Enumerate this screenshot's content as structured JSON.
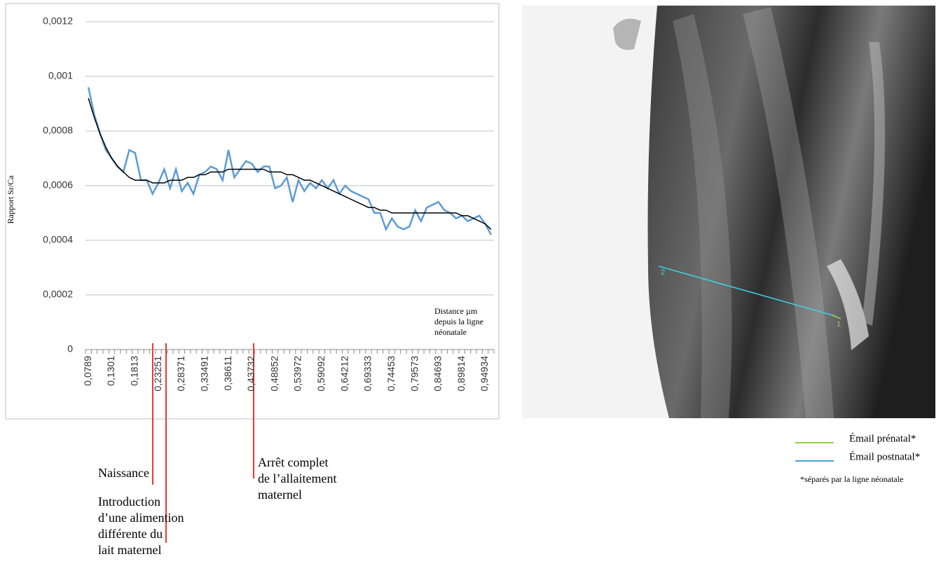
{
  "chart_data": {
    "type": "line",
    "y_label": "Rapport Sr/Ca",
    "x_label": "Distance µm depuis la ligne néonatale",
    "categories": [
      "0,0789",
      null,
      null,
      null,
      "0,1301",
      null,
      null,
      null,
      "0,1813",
      null,
      null,
      null,
      "0,23251",
      null,
      null,
      null,
      "0,28371",
      null,
      null,
      null,
      "0,33491",
      null,
      null,
      null,
      "0,38611",
      null,
      null,
      null,
      "0,43732",
      null,
      null,
      null,
      "0,48852",
      null,
      null,
      null,
      "0,53972",
      null,
      null,
      null,
      "0,59092",
      null,
      null,
      null,
      "0,64212",
      null,
      null,
      null,
      "0,69333",
      null,
      null,
      null,
      "0,74453",
      null,
      null,
      null,
      "0,79573",
      null,
      null,
      null,
      "0,84693",
      null,
      null,
      null,
      "0,89814",
      null,
      null,
      null,
      "0,94934",
      null
    ],
    "series": [
      {
        "color": "#5b9bd5",
        "values": [
          0.00096,
          0.00086,
          0.00079,
          0.00073,
          0.0007,
          0.00067,
          0.00065,
          0.00073,
          0.00072,
          0.00062,
          0.00062,
          0.00057,
          0.00061,
          0.00066,
          0.00059,
          0.00066,
          0.00058,
          0.00061,
          0.00057,
          0.00064,
          0.00065,
          0.00067,
          0.00066,
          0.00062,
          0.00073,
          0.00063,
          0.00066,
          0.00069,
          0.00068,
          0.00065,
          0.00067,
          0.00067,
          0.00059,
          0.0006,
          0.00063,
          0.00054,
          0.00062,
          0.00058,
          0.00061,
          0.00059,
          0.00062,
          0.00059,
          0.00062,
          0.00057,
          0.0006,
          0.00058,
          0.00057,
          0.00056,
          0.00055,
          0.0005,
          0.0005,
          0.00044,
          0.00048,
          0.00045,
          0.00044,
          0.00045,
          0.00051,
          0.00047,
          0.00052,
          0.00053,
          0.00054,
          0.00051,
          0.0005,
          0.00048,
          0.00049,
          0.00047,
          0.00048,
          0.00049,
          0.00046,
          0.00042
        ]
      },
      {
        "color": "#000000",
        "values": [
          0.00092,
          0.00085,
          0.00079,
          0.00074,
          0.0007,
          0.00067,
          0.00065,
          0.00063,
          0.00062,
          0.00062,
          0.00062,
          0.00061,
          0.00061,
          0.00061,
          0.00062,
          0.00062,
          0.00062,
          0.00063,
          0.00063,
          0.00064,
          0.00064,
          0.00065,
          0.00065,
          0.00065,
          0.00066,
          0.00066,
          0.00066,
          0.00066,
          0.00066,
          0.00066,
          0.00066,
          0.00065,
          0.00065,
          0.00065,
          0.00064,
          0.00064,
          0.00063,
          0.00062,
          0.00062,
          0.00061,
          0.0006,
          0.00059,
          0.00058,
          0.00057,
          0.00056,
          0.00055,
          0.00054,
          0.00053,
          0.00052,
          0.00052,
          0.00051,
          0.00051,
          0.0005,
          0.0005,
          0.0005,
          0.0005,
          0.0005,
          0.0005,
          0.0005,
          0.0005,
          0.0005,
          0.0005,
          0.0005,
          0.0005,
          0.00049,
          0.00049,
          0.00048,
          0.00047,
          0.00046,
          0.00044
        ]
      }
    ],
    "ylim": [
      0,
      0.0012
    ],
    "yticks": [
      0,
      {
        "value": 0.0002,
        "label": "0,0002"
      },
      {
        "value": 0.0004,
        "label": "0,0004"
      },
      {
        "value": 0.0006,
        "label": "0,0006"
      },
      {
        "value": 0.0008,
        "label": "0,0008"
      },
      {
        "value": 0.001,
        "label": "0,001"
      },
      {
        "value": 0.0012,
        "label": "0,0012"
      }
    ],
    "grid": true,
    "annotations": [
      {
        "lines": [
          "Naissance"
        ]
      },
      {
        "lines": [
          "Introduction",
          "d’une alimention",
          "différente du",
          "lait maternel"
        ]
      },
      {
        "lines": [
          "Arrêt complet",
          "de l’allaitement",
          "maternel"
        ]
      }
    ]
  },
  "image": {
    "markers": [
      "2",
      "1"
    ],
    "legend": [
      {
        "label": "Émail prénatal*",
        "color": "#92d050"
      },
      {
        "label": "Émail postnatal*",
        "color": "#4ba3d9"
      }
    ],
    "note": "*séparés par la ligne néonatale"
  }
}
